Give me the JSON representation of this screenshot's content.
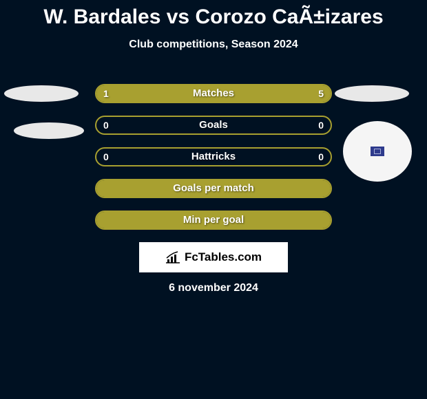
{
  "title": "W. Bardales vs Corozo CaÃ±izares",
  "subtitle": "Club competitions, Season 2024",
  "date": "6 november 2024",
  "logo_text": "FcTables.com",
  "colors": {
    "background": "#001122",
    "bar_border": "#a8a030",
    "bar_fill": "#a8a030",
    "bar_empty": "transparent",
    "text": "#ffffff"
  },
  "bars": [
    {
      "label": "Matches",
      "left_val": "1",
      "right_val": "5",
      "left_pct": 17,
      "right_pct": 83,
      "show_vals": true
    },
    {
      "label": "Goals",
      "left_val": "0",
      "right_val": "0",
      "left_pct": 0,
      "right_pct": 0,
      "show_vals": true
    },
    {
      "label": "Hattricks",
      "left_val": "0",
      "right_val": "0",
      "left_pct": 0,
      "right_pct": 0,
      "show_vals": true
    },
    {
      "label": "Goals per match",
      "left_val": "",
      "right_val": "",
      "left_pct": 100,
      "right_pct": 0,
      "show_vals": false
    },
    {
      "label": "Min per goal",
      "left_val": "",
      "right_val": "",
      "left_pct": 100,
      "right_pct": 0,
      "show_vals": false
    }
  ]
}
